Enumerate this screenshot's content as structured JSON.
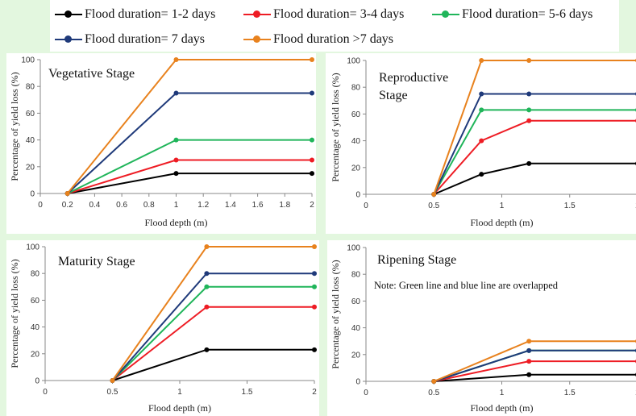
{
  "legend": [
    {
      "name": "Flood duration= 1-2 days",
      "color": "#000000"
    },
    {
      "name": "Flood duration= 3-4 days",
      "color": "#ee1c24"
    },
    {
      "name": "Flood duration= 5-6 days",
      "color": "#20b55a"
    },
    {
      "name": "Flood duration= 7 days",
      "color": "#1f3a7a"
    },
    {
      "name": "Flood duration >7 days",
      "color": "#e8821e"
    }
  ],
  "chart_data": [
    {
      "type": "line",
      "title": "Vegetative Stage",
      "xlabel": "Flood depth (m)",
      "ylabel": "Percentage of yield loss (%)",
      "xlim": [
        0,
        2
      ],
      "ylim": [
        0,
        100
      ],
      "xticks": [
        0,
        0.2,
        0.4,
        0.6,
        0.8,
        1,
        1.2,
        1.4,
        1.6,
        1.8,
        2
      ],
      "xtick_labels": [
        "0",
        "0.2",
        "0.4",
        "0.6",
        "0.8",
        "1",
        "1.2",
        "1.4",
        "1.6",
        "1.8",
        "2"
      ],
      "yticks": [
        0,
        20,
        40,
        60,
        80,
        100
      ],
      "series": [
        {
          "name": "Flood duration= 1-2 days",
          "x": [
            0.2,
            1,
            2
          ],
          "y": [
            0,
            15,
            15
          ]
        },
        {
          "name": "Flood duration= 3-4 days",
          "x": [
            0.2,
            1,
            2
          ],
          "y": [
            0,
            25,
            25
          ]
        },
        {
          "name": "Flood duration= 5-6 days",
          "x": [
            0.2,
            1,
            2
          ],
          "y": [
            0,
            40,
            40
          ]
        },
        {
          "name": "Flood duration= 7 days",
          "x": [
            0.2,
            1,
            2
          ],
          "y": [
            0,
            75,
            75
          ]
        },
        {
          "name": "Flood duration >7 days",
          "x": [
            0.2,
            1,
            2
          ],
          "y": [
            0,
            100,
            100
          ]
        }
      ]
    },
    {
      "type": "line",
      "title": "Reproductive\nStage",
      "xlabel": "Flood depth (m)",
      "ylabel": "Percentage of yield loss (%)",
      "xlim": [
        0,
        2
      ],
      "ylim": [
        0,
        100
      ],
      "xticks": [
        0,
        0.5,
        1,
        1.5,
        2
      ],
      "xtick_labels": [
        "0",
        "0.5",
        "1",
        "1.5",
        "2"
      ],
      "yticks": [
        0,
        20,
        40,
        60,
        80,
        100
      ],
      "series": [
        {
          "name": "Flood duration= 1-2 days",
          "x": [
            0.5,
            0.85,
            1.2,
            2
          ],
          "y": [
            0,
            15,
            23,
            23
          ]
        },
        {
          "name": "Flood duration= 3-4 days",
          "x": [
            0.5,
            0.85,
            1.2,
            2
          ],
          "y": [
            0,
            40,
            55,
            55
          ]
        },
        {
          "name": "Flood duration= 5-6 days",
          "x": [
            0.5,
            0.85,
            1.2,
            2
          ],
          "y": [
            0,
            63,
            63,
            63
          ]
        },
        {
          "name": "Flood duration= 7 days",
          "x": [
            0.5,
            0.85,
            1.2,
            2
          ],
          "y": [
            0,
            75,
            75,
            75
          ]
        },
        {
          "name": "Flood duration >7 days",
          "x": [
            0.5,
            0.85,
            1.2,
            2
          ],
          "y": [
            0,
            100,
            100,
            100
          ]
        }
      ]
    },
    {
      "type": "line",
      "title": "Maturity Stage",
      "xlabel": "Flood depth (m)",
      "ylabel": "Percentage of yield loss (%)",
      "xlim": [
        0,
        2
      ],
      "ylim": [
        0,
        100
      ],
      "xticks": [
        0,
        0.5,
        1,
        1.5,
        2
      ],
      "xtick_labels": [
        "0",
        "0.5",
        "1",
        "1.5",
        "2"
      ],
      "yticks": [
        0,
        20,
        40,
        60,
        80,
        100
      ],
      "series": [
        {
          "name": "Flood duration= 1-2 days",
          "x": [
            0.5,
            1.2,
            2
          ],
          "y": [
            0,
            23,
            23
          ]
        },
        {
          "name": "Flood duration= 3-4 days",
          "x": [
            0.5,
            1.2,
            2
          ],
          "y": [
            0,
            55,
            55
          ]
        },
        {
          "name": "Flood duration= 5-6 days",
          "x": [
            0.5,
            1.2,
            2
          ],
          "y": [
            0,
            70,
            70
          ]
        },
        {
          "name": "Flood duration= 7 days",
          "x": [
            0.5,
            1.2,
            2
          ],
          "y": [
            0,
            80,
            80
          ]
        },
        {
          "name": "Flood duration >7 days",
          "x": [
            0.5,
            1.2,
            2
          ],
          "y": [
            0,
            100,
            100
          ]
        }
      ]
    },
    {
      "type": "line",
      "title": "Ripening Stage",
      "note": "Note: Green line and blue line are overlapped",
      "xlabel": "Flood depth (m)",
      "ylabel": "Percentage of yield loss (%)",
      "xlim": [
        0,
        2
      ],
      "ylim": [
        0,
        100
      ],
      "xticks": [
        0,
        0.5,
        1,
        1.5,
        2
      ],
      "xtick_labels": [
        "0",
        "0.5",
        "1",
        "1.5",
        "2"
      ],
      "yticks": [
        0,
        20,
        40,
        60,
        80,
        100
      ],
      "series": [
        {
          "name": "Flood duration= 1-2 days",
          "x": [
            0.5,
            1.2,
            2
          ],
          "y": [
            0,
            5,
            5
          ]
        },
        {
          "name": "Flood duration= 3-4 days",
          "x": [
            0.5,
            1.2,
            2
          ],
          "y": [
            0,
            15,
            15
          ]
        },
        {
          "name": "Flood duration= 5-6 days",
          "x": [
            0.5,
            1.2,
            2
          ],
          "y": [
            0,
            23,
            23
          ]
        },
        {
          "name": "Flood duration= 7 days",
          "x": [
            0.5,
            1.2,
            2
          ],
          "y": [
            0,
            23,
            23
          ]
        },
        {
          "name": "Flood duration >7 days",
          "x": [
            0.5,
            1.2,
            2
          ],
          "y": [
            0,
            30,
            30
          ]
        }
      ]
    }
  ]
}
